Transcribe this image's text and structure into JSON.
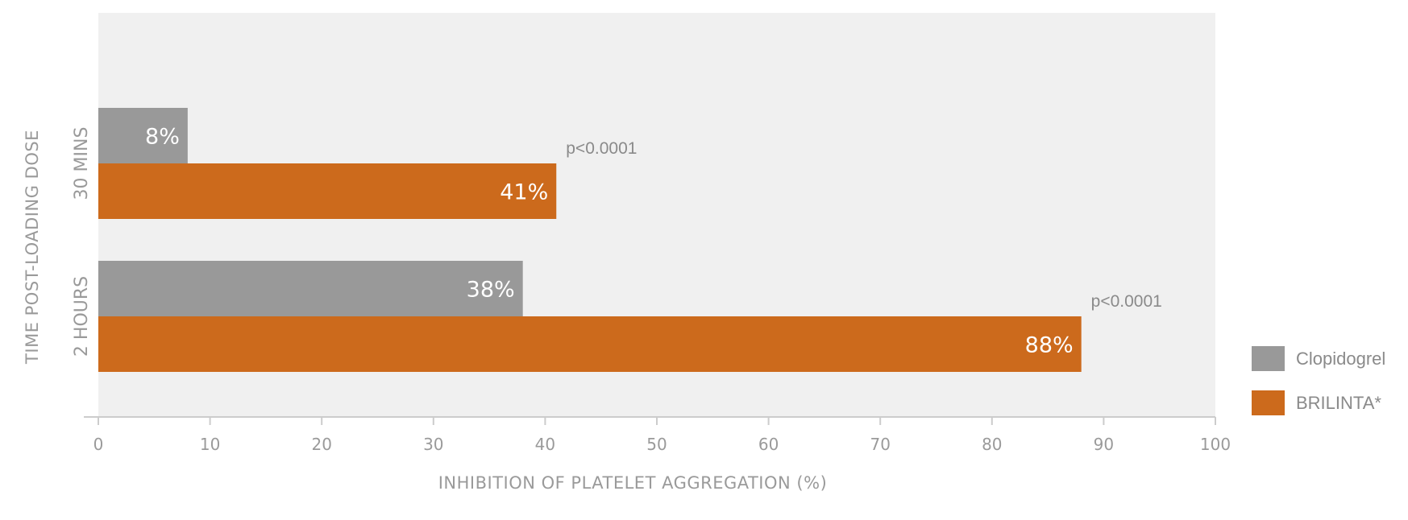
{
  "chart_data": {
    "type": "bar",
    "orientation": "horizontal",
    "categories": [
      "30 MINS",
      "2 HOURS"
    ],
    "series": [
      {
        "name": "Clopidogrel",
        "values": [
          8,
          38
        ],
        "labels": [
          "8%",
          "38%"
        ]
      },
      {
        "name": "BRILINTA*",
        "values": [
          41,
          88
        ],
        "labels": [
          "41%",
          "88%"
        ]
      }
    ],
    "annotations": [
      "p<0.0001",
      "p<0.0001"
    ],
    "xlabel": "INHIBITION OF PLATELET AGGREGATION (%)",
    "ylabel": "TIME POST-LOADING DOSE",
    "xlim": [
      0,
      100
    ],
    "xticks": [
      0,
      10,
      20,
      30,
      40,
      50,
      60,
      70,
      80,
      90,
      100
    ],
    "grid": false,
    "legend_position": "bottom-right",
    "colors": {
      "Clopidogrel": "#999999",
      "BRILINTA*": "#cc6a1c",
      "plot_background": "#f0f0f0",
      "axis": "#cccccc"
    }
  }
}
